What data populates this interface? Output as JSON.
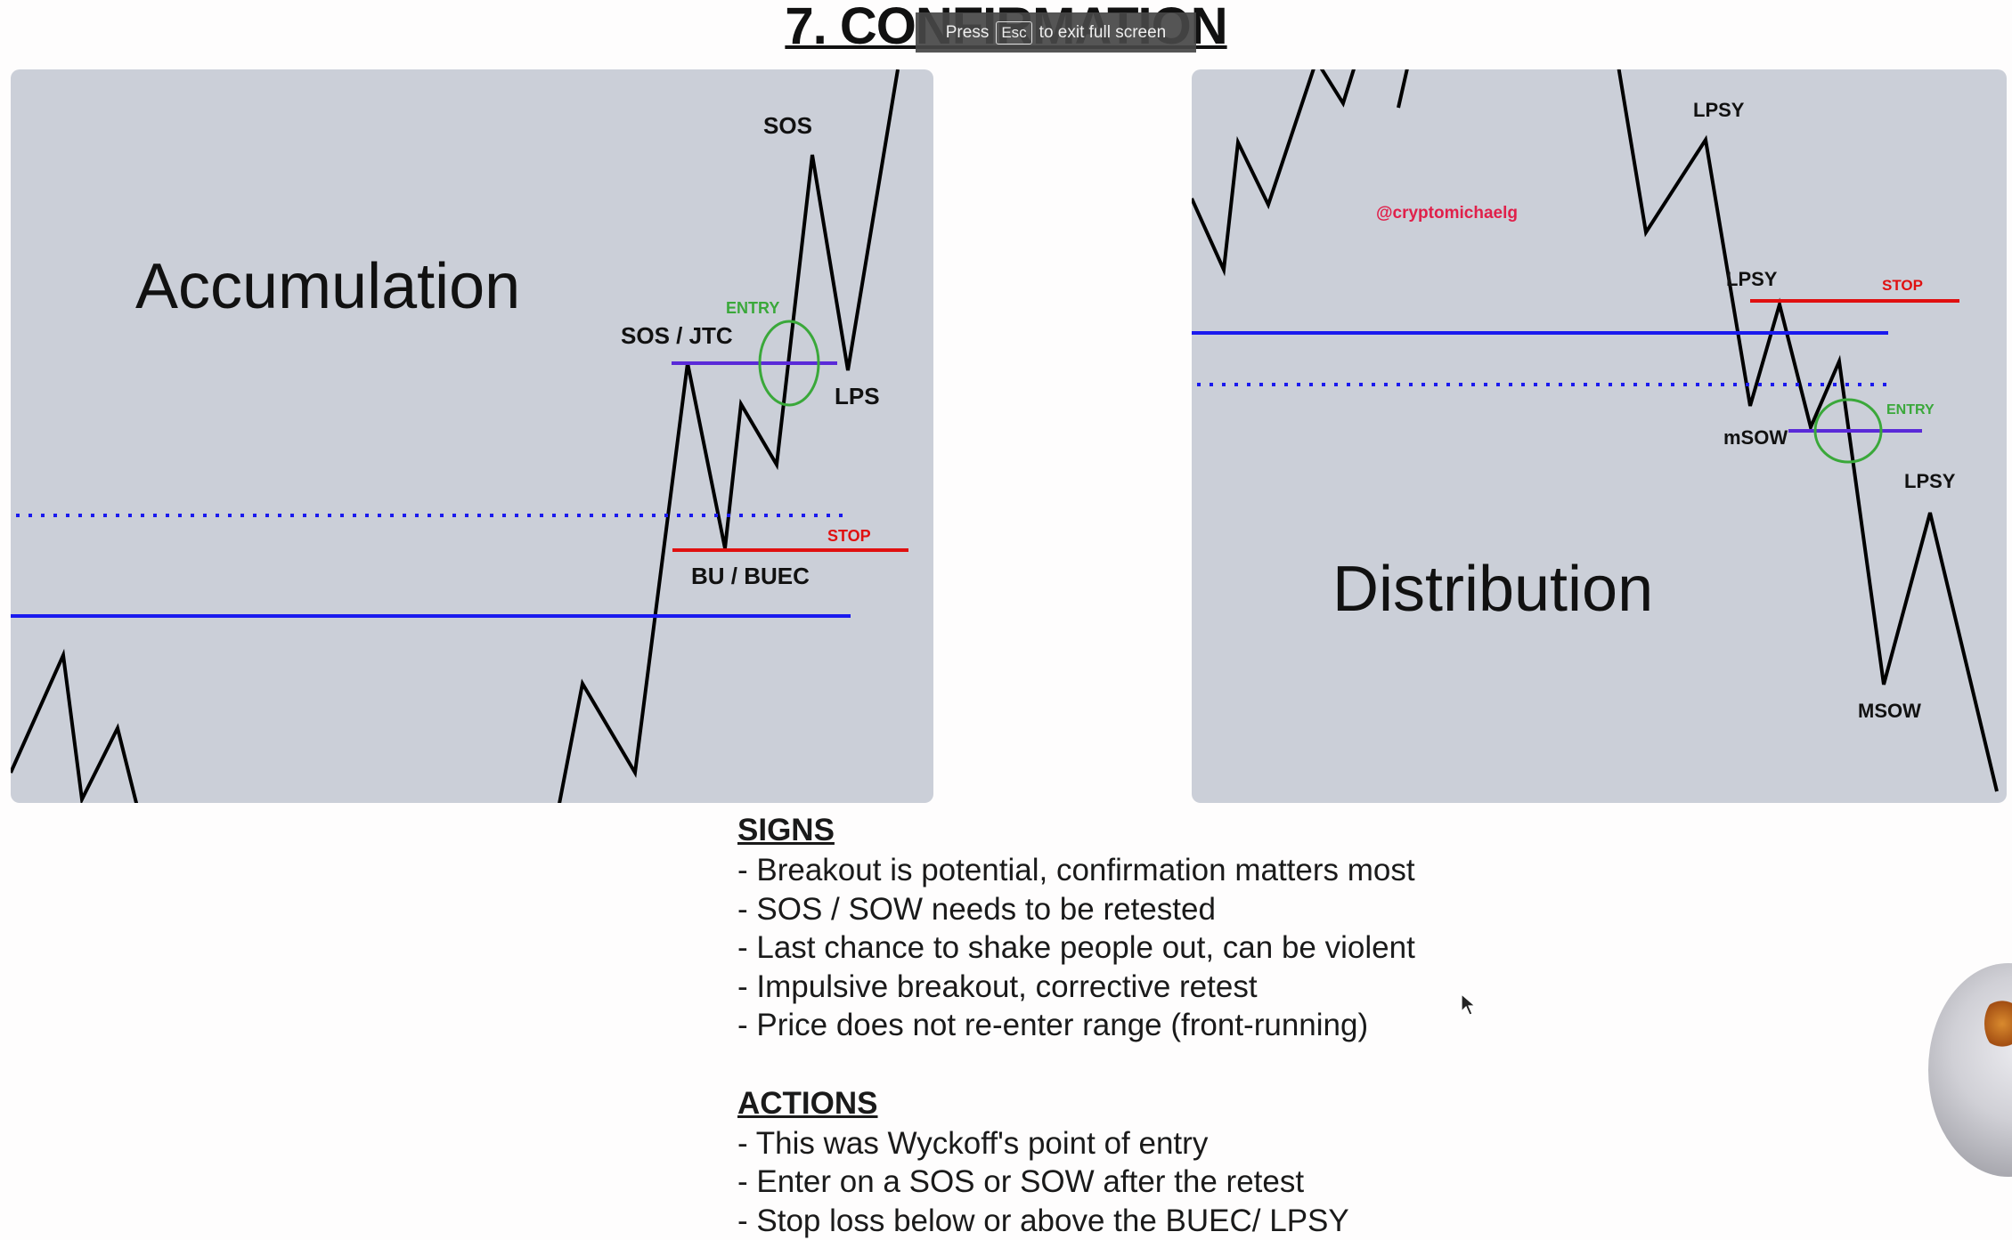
{
  "title": "7. CONFIRMATION",
  "fullscreen_banner": {
    "press": "Press",
    "key": "Esc",
    "rest": "to exit full screen"
  },
  "accumulation": {
    "title": "Accumulation",
    "labels": {
      "sos": "SOS",
      "entry": "ENTRY",
      "sos_jtc": "SOS / JTC",
      "lps": "LPS",
      "stop": "STOP",
      "bu_buec": "BU / BUEC"
    }
  },
  "distribution": {
    "title": "Distribution",
    "watermark": "@cryptomichaelg",
    "labels": {
      "lpsy_top": "LPSY",
      "lpsy_mid": "LPSY",
      "stop": "STOP",
      "entry": "ENTRY",
      "msow_minor": "mSOW",
      "lpsy_low": "LPSY",
      "msow": "MSOW"
    }
  },
  "colors": {
    "panel": "#cbcfd8",
    "blue": "#1a1aee",
    "red": "#e01010",
    "green": "#3aa83a",
    "purple": "#5a2ad8",
    "watermark": "#e0204a"
  },
  "signs": {
    "heading": "SIGNS",
    "items": [
      "- Breakout is potential, confirmation matters most",
      "- SOS / SOW needs to be retested",
      "- Last chance to shake people out, can be violent",
      "- Impulsive breakout, corrective retest",
      "- Price does not re-enter range (front-running)"
    ]
  },
  "actions": {
    "heading": "ACTIONS",
    "items": [
      "- This was Wyckoff's point of entry",
      "- Enter on a SOS or SOW after the retest",
      "- Stop loss below or above the BUEC/ LPSY"
    ]
  },
  "icons": {
    "cursor": "mouse-pointer-icon",
    "orb": "avatar-orb"
  }
}
